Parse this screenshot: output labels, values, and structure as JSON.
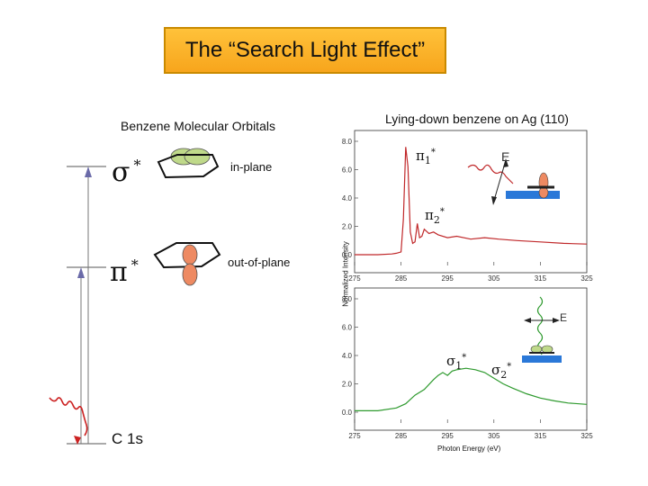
{
  "slide_title": "The “Search Light Effect”",
  "left_panel": {
    "heading": "Benzene Molecular Orbitals",
    "levels": [
      {
        "symbol": "σ",
        "star": "*",
        "orbital_label": "in-plane"
      },
      {
        "symbol": "π",
        "star": "*",
        "orbital_label": "out-of-plane"
      },
      {
        "symbol": "C 1s"
      }
    ],
    "colors": {
      "in_plane_lobes": "#bfd98a",
      "out_of_plane_lobes": "#ee8a62",
      "arrow": "#6a6aa8",
      "wavy_photon": "#cc2222"
    }
  },
  "right_panel": {
    "heading": "Lying-down benzene on Ag (110)",
    "ylabel": "Normalized Intensity",
    "xlabel": "Photon Energy (eV)",
    "e_label": "E",
    "peaks_top": [
      {
        "sym": "π",
        "sub": "1",
        "star": "*"
      },
      {
        "sym": "π",
        "sub": "2",
        "star": "*"
      }
    ],
    "peaks_bottom": [
      {
        "sym": "σ",
        "sub": "1",
        "star": "*"
      },
      {
        "sym": "σ",
        "sub": "2",
        "star": "*"
      }
    ],
    "colors": {
      "top_series": "#c0282a",
      "bottom_series": "#2e9a2e",
      "substrate": "#2a78d8"
    }
  },
  "chart_data": [
    {
      "type": "line",
      "xlim": [
        275,
        325
      ],
      "ylim": [
        0,
        8
      ],
      "xticks": [
        "275",
        "285",
        "295",
        "305",
        "315",
        "325"
      ],
      "yticks": [
        "0.0",
        "2.0",
        "4.0",
        "6.0",
        "8.0"
      ],
      "x": [
        275,
        280,
        283,
        284,
        285,
        285.5,
        286,
        286.5,
        287,
        287.5,
        288,
        288.5,
        289,
        289.5,
        290,
        291,
        292,
        293,
        295,
        297,
        300,
        303,
        306,
        310,
        315,
        320,
        325
      ],
      "y": [
        0.0,
        0.0,
        0.05,
        0.1,
        0.2,
        2.5,
        7.6,
        6.2,
        1.6,
        0.8,
        0.9,
        2.2,
        1.2,
        1.3,
        1.8,
        1.5,
        1.6,
        1.4,
        1.2,
        1.3,
        1.1,
        1.2,
        1.1,
        1.0,
        0.9,
        0.8,
        0.75
      ]
    },
    {
      "type": "line",
      "xlim": [
        275,
        325
      ],
      "ylim": [
        0,
        8
      ],
      "xticks": [
        "275",
        "285",
        "295",
        "305",
        "315",
        "325"
      ],
      "yticks": [
        "0.0",
        "2.0",
        "4.0",
        "6.0",
        "8.0"
      ],
      "x": [
        275,
        280,
        284,
        286,
        288,
        290,
        292,
        293,
        294,
        295,
        296,
        297,
        299,
        301,
        303,
        305,
        307,
        309,
        312,
        315,
        318,
        321,
        325
      ],
      "y": [
        0.1,
        0.1,
        0.3,
        0.6,
        1.2,
        1.6,
        2.3,
        2.6,
        2.8,
        2.6,
        2.9,
        3.0,
        3.1,
        3.0,
        2.8,
        2.4,
        2.0,
        1.7,
        1.3,
        1.0,
        0.8,
        0.65,
        0.55
      ]
    }
  ]
}
